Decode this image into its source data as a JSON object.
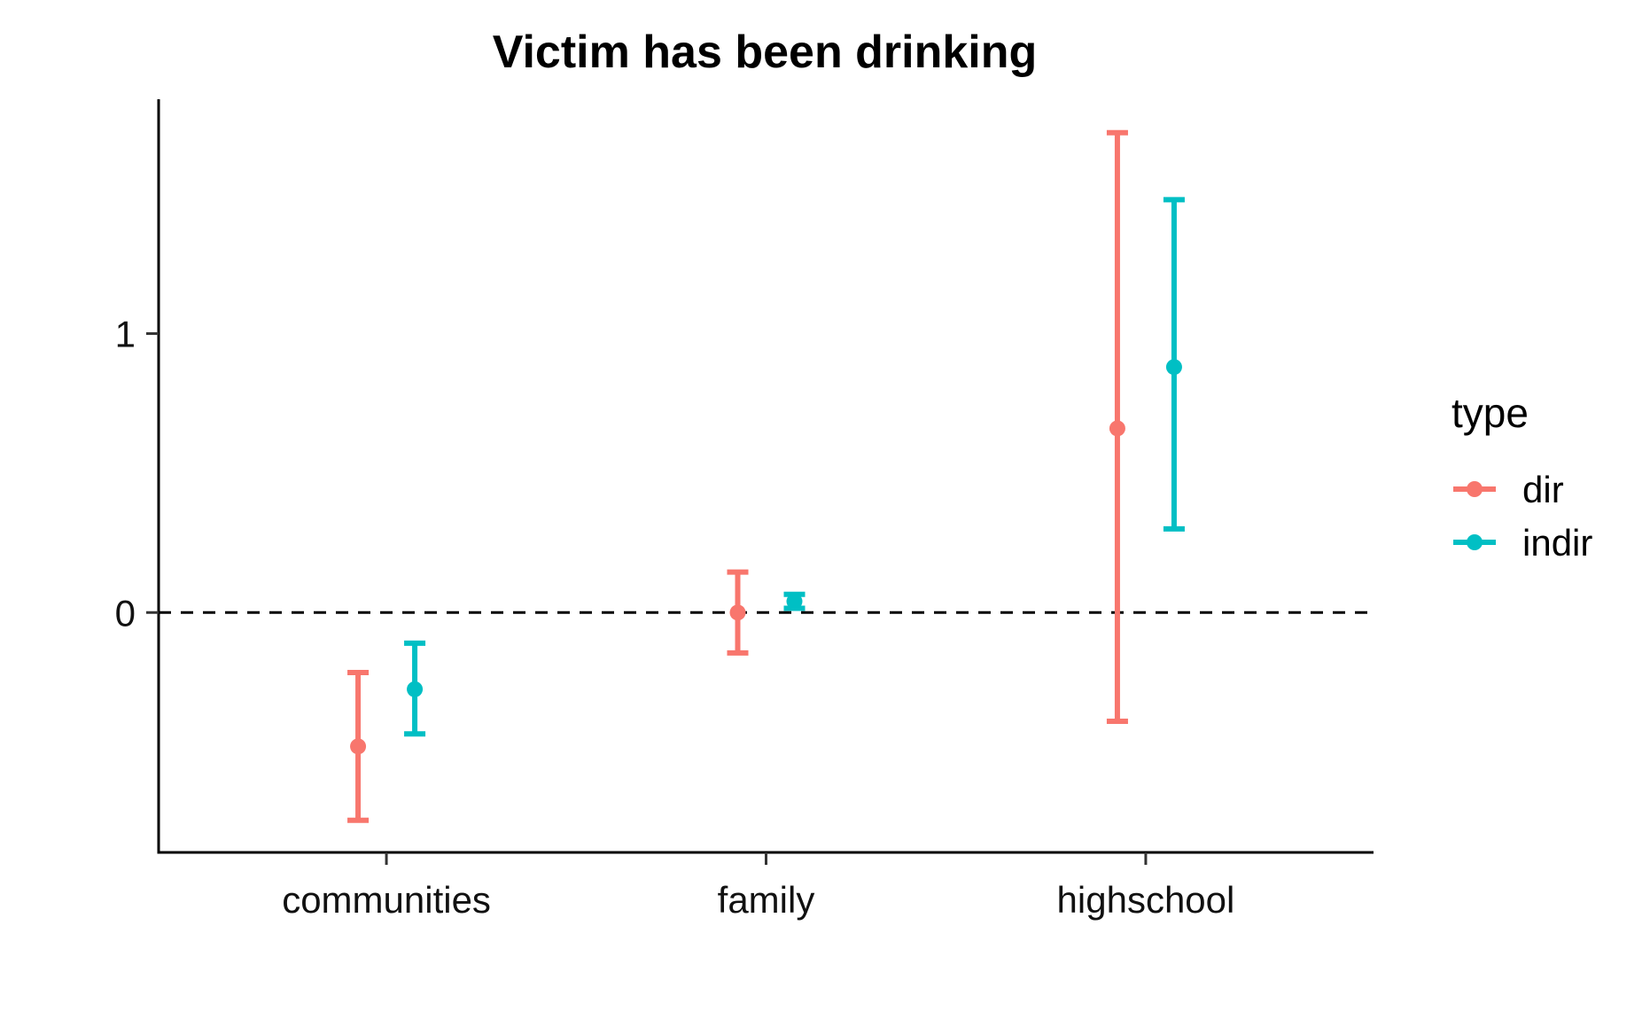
{
  "chart_data": {
    "type": "errorbar",
    "title": "Victim has been drinking",
    "xlabel": "",
    "ylabel": "",
    "categories": [
      "communities",
      "family",
      "highschool"
    ],
    "y_ticks": [
      0,
      1
    ],
    "ylim": [
      -0.86,
      1.84
    ],
    "reference_line": {
      "y": 0,
      "style": "dashed"
    },
    "legend": {
      "title": "type",
      "position": "right"
    },
    "series": [
      {
        "name": "dir",
        "color": "#F8766D",
        "points": [
          {
            "category": "communities",
            "estimate": -0.48,
            "lower": -0.745,
            "upper": -0.215
          },
          {
            "category": "family",
            "estimate": 0.0,
            "lower": -0.145,
            "upper": 0.145
          },
          {
            "category": "highschool",
            "estimate": 0.66,
            "lower": -0.39,
            "upper": 1.72
          }
        ]
      },
      {
        "name": "indir",
        "color": "#00BFC4",
        "points": [
          {
            "category": "communities",
            "estimate": -0.275,
            "lower": -0.435,
            "upper": -0.11
          },
          {
            "category": "family",
            "estimate": 0.04,
            "lower": 0.015,
            "upper": 0.065
          },
          {
            "category": "highschool",
            "estimate": 0.88,
            "lower": 0.3,
            "upper": 1.48
          }
        ]
      }
    ]
  }
}
